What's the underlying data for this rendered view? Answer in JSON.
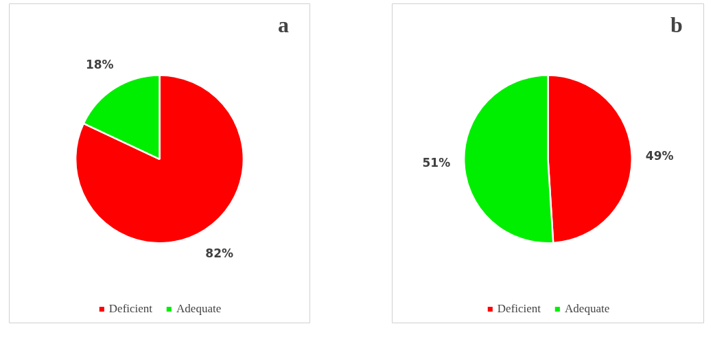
{
  "chart_data": [
    {
      "type": "pie",
      "title": "a",
      "categories": [
        "Deficient",
        "Adequate"
      ],
      "values": [
        82,
        18
      ],
      "colors": [
        "#ff0000",
        "#00ee00"
      ],
      "value_labels": [
        "82%",
        "18%"
      ],
      "legend": "bottom"
    },
    {
      "type": "pie",
      "title": "b",
      "categories": [
        "Deficient",
        "Adequate"
      ],
      "values": [
        49,
        51
      ],
      "colors": [
        "#ff0000",
        "#00ee00"
      ],
      "value_labels": [
        "49%",
        "51%"
      ],
      "legend": "bottom"
    }
  ]
}
